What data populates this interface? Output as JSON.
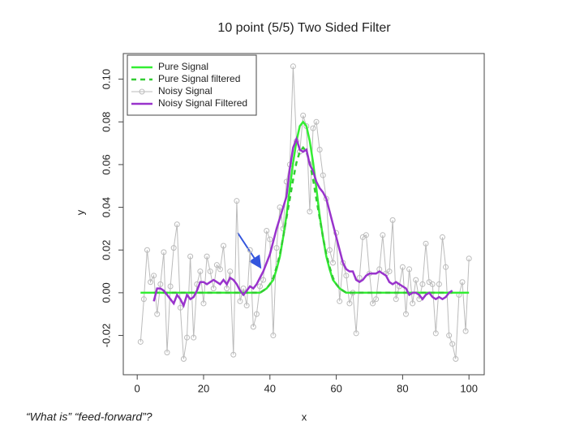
{
  "caption": "“What is” “feed-forward”?",
  "chart_data": {
    "type": "line",
    "title": "10 point (5/5) Two Sided Filter",
    "x_label": "x",
    "y_label": "y",
    "xlim": [
      -4.2,
      104.6
    ],
    "ylim": [
      -0.0384,
      0.112
    ],
    "xticks": [
      0,
      20,
      40,
      60,
      80,
      100
    ],
    "yticks": [
      -0.02,
      {
        "value": 0,
        "label": "0.00"
      },
      0.02,
      0.04,
      0.06,
      0.08,
      {
        "value": 0.1,
        "label": "0.10"
      }
    ],
    "legend": "top-left",
    "x": [
      1,
      2,
      3,
      4,
      5,
      6,
      7,
      8,
      9,
      10,
      11,
      12,
      13,
      14,
      15,
      16,
      17,
      18,
      19,
      20,
      21,
      22,
      23,
      24,
      25,
      26,
      27,
      28,
      29,
      30,
      31,
      32,
      33,
      34,
      35,
      36,
      37,
      38,
      39,
      40,
      41,
      42,
      43,
      44,
      45,
      46,
      47,
      48,
      49,
      50,
      51,
      52,
      53,
      54,
      55,
      56,
      57,
      58,
      59,
      60,
      61,
      62,
      63,
      64,
      65,
      66,
      67,
      68,
      69,
      70,
      71,
      72,
      73,
      74,
      75,
      76,
      77,
      78,
      79,
      80,
      81,
      82,
      83,
      84,
      85,
      86,
      87,
      88,
      89,
      90,
      91,
      92,
      93,
      94,
      95,
      96,
      97,
      98,
      99,
      100
    ],
    "series": [
      {
        "name": "Pure Signal",
        "color": "#33ee33",
        "dash": false,
        "marker": false,
        "values": [
          0,
          0,
          0,
          0,
          0,
          0,
          0,
          0,
          0,
          0,
          0,
          0,
          0,
          0,
          0,
          0,
          0,
          0,
          0,
          0,
          0,
          0,
          0,
          0,
          0,
          0,
          0,
          0,
          0,
          0,
          0,
          0,
          0,
          0,
          0,
          0,
          0,
          0.001,
          0.002,
          0.004,
          0.006,
          0.011,
          0.017,
          0.026,
          0.036,
          0.049,
          0.061,
          0.071,
          0.078,
          0.08,
          0.078,
          0.071,
          0.061,
          0.049,
          0.036,
          0.026,
          0.017,
          0.011,
          0.006,
          0.004,
          0.002,
          0.001,
          0,
          0,
          0,
          0,
          0,
          0,
          0,
          0,
          0,
          0,
          0,
          0,
          0,
          0,
          0,
          0,
          0,
          0,
          0,
          0,
          0,
          0,
          0,
          0,
          0,
          0,
          0,
          0,
          0,
          0,
          0,
          0,
          0,
          0,
          0,
          0,
          0,
          0
        ]
      },
      {
        "name": "Pure Signal filtered",
        "color": "#33cc33",
        "dash": true,
        "marker": false,
        "values": [
          null,
          null,
          null,
          null,
          0,
          0,
          0,
          0,
          0,
          0,
          0,
          0,
          0,
          0,
          0,
          0,
          0,
          0,
          0,
          0,
          0,
          0,
          0,
          0,
          0,
          0,
          0,
          0,
          0,
          0,
          0,
          0,
          0,
          0,
          0,
          0,
          0,
          0.001,
          0.002,
          0.004,
          0.007,
          0.012,
          0.018,
          0.026,
          0.035,
          0.044,
          0.053,
          0.061,
          0.066,
          0.068,
          0.066,
          0.061,
          0.053,
          0.044,
          0.035,
          0.026,
          0.018,
          0.012,
          0.007,
          0.004,
          0.002,
          0.001,
          0,
          0,
          0,
          0,
          0,
          0,
          0,
          0,
          0,
          0,
          0,
          0,
          0,
          0,
          0,
          0,
          0,
          0,
          0,
          0,
          0,
          0,
          0,
          0,
          0,
          0,
          0,
          0,
          0,
          0,
          0,
          0,
          0,
          null,
          null,
          null,
          null,
          null
        ]
      },
      {
        "name": "Noisy Signal",
        "color": "#bbbbbb",
        "dash": false,
        "marker": true,
        "values": [
          -0.023,
          -0.003,
          0.02,
          0.005,
          0.008,
          -0.01,
          0.004,
          0.019,
          -0.028,
          0.003,
          0.021,
          0.032,
          -0.007,
          -0.031,
          -0.021,
          0.017,
          -0.021,
          0.004,
          0.01,
          -0.005,
          0.017,
          0.01,
          0.002,
          0.013,
          0.011,
          0.022,
          0.002,
          0.01,
          -0.029,
          0.043,
          -0.004,
          0.002,
          -0.006,
          0.02,
          -0.016,
          -0.01,
          0.003,
          0.006,
          0.029,
          0.025,
          -0.02,
          0.021,
          0.04,
          0.03,
          0.052,
          0.06,
          0.106,
          0.071,
          0.066,
          0.083,
          0.078,
          0.038,
          0.077,
          0.08,
          0.067,
          0.055,
          0.044,
          0.02,
          0.014,
          0.028,
          -0.004,
          0.014,
          0.008,
          -0.005,
          0,
          -0.019,
          0.007,
          0.026,
          0.027,
          0.009,
          -0.005,
          -0.003,
          0.011,
          0.027,
          0.009,
          0.01,
          0.034,
          -0.003,
          0.003,
          0.012,
          -0.01,
          0.011,
          -0.005,
          0.006,
          -0.003,
          0.004,
          0.023,
          0.005,
          0.004,
          -0.019,
          0.004,
          0.026,
          0.012,
          -0.02,
          -0.024,
          -0.031,
          -0.001,
          0.005,
          -0.018,
          0.016
        ]
      },
      {
        "name": "Noisy Signal Filtered",
        "color": "#9933cc",
        "dash": false,
        "marker": false,
        "values": [
          null,
          null,
          null,
          null,
          -0.004,
          0.002,
          0.002,
          0.001,
          -0.001,
          -0.003,
          -0.005,
          -0.001,
          -0.003,
          -0.006,
          -0.001,
          -0.003,
          -0.002,
          0.001,
          0.005,
          0.005,
          0.004,
          0.005,
          0.006,
          0.005,
          0.004,
          0.006,
          0.004,
          0.007,
          0.006,
          0.004,
          0.001,
          -0.001,
          0.001,
          0.003,
          0.002,
          0.004,
          0.007,
          0.01,
          0.014,
          0.018,
          0.024,
          0.03,
          0.035,
          0.04,
          0.045,
          0.058,
          0.068,
          0.072,
          0.067,
          0.066,
          0.067,
          0.06,
          0.057,
          0.052,
          0.049,
          0.047,
          0.044,
          0.038,
          0.032,
          0.026,
          0.02,
          0.014,
          0.011,
          0.01,
          0.01,
          0.006,
          0.005,
          0.006,
          0.008,
          0.009,
          0.009,
          0.009,
          0.01,
          0.009,
          0.008,
          0.005,
          0.004,
          0.005,
          0.004,
          0.003,
          0.002,
          -0.001,
          0,
          0,
          -0.001,
          -0.003,
          -0.001,
          0,
          -0.002,
          -0.003,
          -0.002,
          -0.003,
          -0.002,
          0,
          0.001,
          null,
          null,
          null,
          null,
          null
        ]
      }
    ]
  }
}
